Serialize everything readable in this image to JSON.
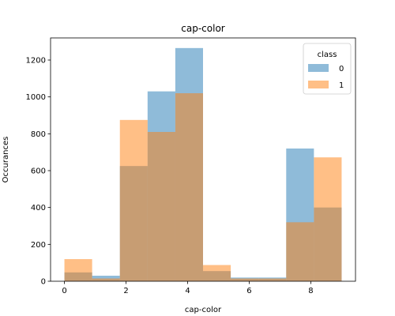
{
  "chart_data": {
    "type": "bar",
    "title": "cap-color",
    "xlabel": "cap-color",
    "ylabel": "Occurances",
    "xlim": [
      -0.45,
      9.45
    ],
    "ylim": [
      0,
      1320
    ],
    "xticks": [
      0,
      2,
      4,
      6,
      8
    ],
    "yticks": [
      0,
      200,
      400,
      600,
      800,
      1000,
      1200
    ],
    "bin_edges": [
      0,
      0.9,
      1.8,
      2.7,
      3.6,
      4.5,
      5.4,
      6.3,
      7.2,
      8.1,
      9
    ],
    "legend": {
      "title": "class",
      "placement": "top-right"
    },
    "series": [
      {
        "name": "0",
        "color": "#1f77b4",
        "alpha": 0.5,
        "values": [
          48,
          30,
          625,
          1030,
          1265,
          55,
          20,
          20,
          720,
          400
        ]
      },
      {
        "name": "1",
        "color": "#ff7f0e",
        "alpha": 0.5,
        "values": [
          120,
          15,
          875,
          810,
          1020,
          88,
          15,
          15,
          320,
          672
        ]
      }
    ]
  }
}
